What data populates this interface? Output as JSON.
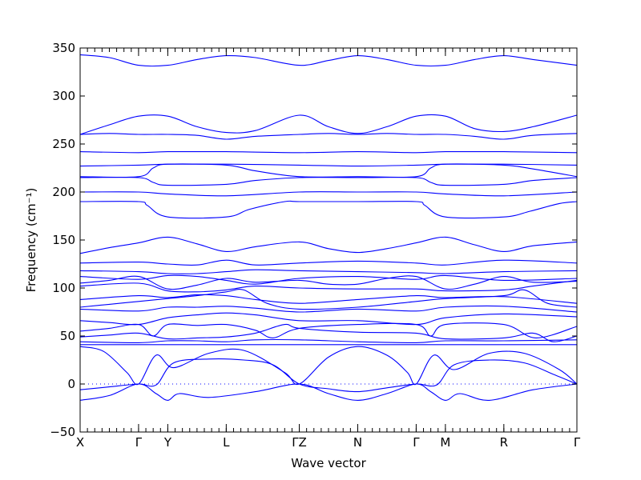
{
  "chart_data": {
    "type": "line",
    "title": "",
    "xlabel": "Wave vector",
    "ylabel": "Frequency (cm⁻¹)",
    "ylim": [
      -50,
      350
    ],
    "yticks": [
      -50,
      0,
      50,
      100,
      150,
      200,
      250,
      300,
      350
    ],
    "xlim": [
      0,
      8.5
    ],
    "xticks": [
      {
        "x": 0.0,
        "label": "X"
      },
      {
        "x": 1.0,
        "label": "Γ"
      },
      {
        "x": 1.5,
        "label": "Y"
      },
      {
        "x": 2.5,
        "label": "L"
      },
      {
        "x": 3.75,
        "label": "ΓZ"
      },
      {
        "x": 4.75,
        "label": "N"
      },
      {
        "x": 5.75,
        "label": "Γ"
      },
      {
        "x": 6.25,
        "label": "M"
      },
      {
        "x": 7.25,
        "label": "R"
      },
      {
        "x": 8.5,
        "label": "Γ"
      }
    ],
    "grid": false,
    "bands": [
      {
        "x": [
          0,
          0.5,
          1,
          1.5,
          2,
          2.5,
          3,
          3.75,
          4.25,
          4.75,
          5.25,
          5.75,
          6.25,
          6.75,
          7.25,
          7.75,
          8.5
        ],
        "y": [
          343,
          340,
          332,
          332,
          338,
          342,
          340,
          332,
          337,
          342,
          338,
          332,
          332,
          338,
          342,
          338,
          332
        ]
      },
      {
        "x": [
          0,
          0.5,
          1,
          1.5,
          2,
          2.5,
          3,
          3.75,
          4.25,
          4.75,
          5.25,
          5.75,
          6.25,
          6.75,
          7.25,
          7.75,
          8.5
        ],
        "y": [
          260,
          270,
          279,
          279,
          268,
          262,
          264,
          280,
          268,
          261,
          268,
          279,
          279,
          266,
          263,
          268,
          280
        ]
      },
      {
        "x": [
          0,
          0.5,
          1,
          1.5,
          2,
          2.5,
          3,
          3.75,
          4.25,
          4.75,
          5.25,
          5.75,
          6.25,
          6.75,
          7.25,
          7.75,
          8.5
        ],
        "y": [
          260,
          261,
          260,
          260,
          259,
          255,
          258,
          260,
          261,
          260,
          261,
          260,
          260,
          258,
          255,
          259,
          261
        ]
      },
      {
        "x": [
          0,
          1,
          1.5,
          2.5,
          3.75,
          4.75,
          5.75,
          6.25,
          7.25,
          8.5
        ],
        "y": [
          242,
          241,
          242,
          242,
          241,
          242,
          241,
          242,
          242,
          241
        ]
      },
      {
        "x": [
          0,
          1,
          1.5,
          2.5,
          3.75,
          4.75,
          5.75,
          6.25,
          7.25,
          8.5
        ],
        "y": [
          227,
          228,
          229,
          229,
          228,
          227,
          228,
          229,
          229,
          228
        ]
      },
      {
        "x": [
          0,
          1,
          1.25,
          1.5,
          2.5,
          3,
          3.75,
          4.75,
          5.75,
          6,
          6.25,
          7.25,
          7.75,
          8.5
        ],
        "y": [
          216,
          216,
          225,
          229,
          228,
          222,
          216,
          216,
          216,
          225,
          229,
          228,
          224,
          216
        ]
      },
      {
        "x": [
          0,
          1,
          1.25,
          1.5,
          2.5,
          3,
          3.75,
          4.75,
          5.75,
          6,
          6.25,
          7.25,
          7.75,
          8.5
        ],
        "y": [
          215,
          215,
          210,
          207,
          208,
          212,
          215,
          215,
          215,
          210,
          207,
          208,
          212,
          215
        ]
      },
      {
        "x": [
          0,
          1,
          1.5,
          2.5,
          3.75,
          4.75,
          5.75,
          6.25,
          7.25,
          8.5
        ],
        "y": [
          200,
          200,
          198,
          196,
          200,
          200,
          200,
          198,
          196,
          200
        ]
      },
      {
        "x": [
          0,
          1,
          1.15,
          1.5,
          2.5,
          2.9,
          3.5,
          3.75,
          4.75,
          5.75,
          5.9,
          6.25,
          7.25,
          7.7,
          8.2,
          8.5
        ],
        "y": [
          190,
          190,
          186,
          174,
          174,
          182,
          190,
          190,
          190,
          190,
          186,
          174,
          174,
          180,
          188,
          190
        ]
      },
      {
        "x": [
          0,
          0.5,
          1,
          1.5,
          2,
          2.5,
          3,
          3.75,
          4.25,
          4.75,
          5.25,
          5.75,
          6.25,
          6.75,
          7.25,
          7.75,
          8.5
        ],
        "y": [
          136,
          142,
          147,
          153,
          146,
          138,
          143,
          148,
          141,
          137,
          141,
          147,
          153,
          145,
          138,
          144,
          148
        ]
      },
      {
        "x": [
          0,
          1,
          1.5,
          2,
          2.5,
          3,
          3.75,
          4.75,
          5.75,
          6.25,
          7.25,
          8.5
        ],
        "y": [
          126,
          127,
          125,
          124,
          129,
          124,
          126,
          128,
          126,
          124,
          129,
          126
        ]
      },
      {
        "x": [
          0,
          1,
          1.5,
          2,
          2.5,
          3,
          3.75,
          4.75,
          5.75,
          6.25,
          7.25,
          8.5
        ],
        "y": [
          118,
          117,
          115,
          115,
          117,
          119,
          118,
          117,
          116,
          115,
          117,
          118
        ]
      },
      {
        "x": [
          0,
          1,
          1.5,
          2,
          2.5,
          3,
          3.75,
          4.75,
          5.75,
          6.25,
          7.25,
          8.5
        ],
        "y": [
          112,
          109,
          113,
          112,
          108,
          104,
          110,
          112,
          109,
          113,
          108,
          110
        ]
      },
      {
        "x": [
          0,
          0.5,
          1,
          1.5,
          2,
          2.5,
          3,
          3.75,
          4.25,
          4.75,
          5.25,
          5.75,
          6.25,
          6.75,
          7.25,
          7.75,
          8.5
        ],
        "y": [
          105,
          108,
          112,
          99,
          103,
          110,
          106,
          108,
          104,
          104,
          110,
          112,
          99,
          104,
          112,
          106,
          107
        ]
      },
      {
        "x": [
          0,
          1,
          1.5,
          2,
          2.5,
          3,
          3.75,
          4.75,
          5.75,
          6.25,
          7.25,
          7.75,
          8.5
        ],
        "y": [
          102,
          105,
          97,
          96,
          98,
          102,
          100,
          99,
          99,
          97,
          98,
          102,
          108
        ]
      },
      {
        "x": [
          0,
          1,
          1.5,
          2,
          2.5,
          3,
          3.75,
          4.75,
          5.75,
          6.25,
          7.25,
          8.5
        ],
        "y": [
          88,
          92,
          90,
          93,
          92,
          88,
          84,
          88,
          92,
          90,
          91,
          84
        ]
      },
      {
        "x": [
          0,
          0.5,
          1,
          1.5,
          2,
          2.5,
          2.8,
          3.2,
          3.75,
          4.75,
          5.75,
          6.25,
          7.25,
          7.6,
          8.0,
          8.5
        ],
        "y": [
          80,
          83,
          86,
          89,
          92,
          96,
          98,
          84,
          78,
          80,
          86,
          89,
          92,
          98,
          84,
          80
        ]
      },
      {
        "x": [
          0,
          1,
          1.5,
          2,
          2.5,
          3,
          3.75,
          4.75,
          5.75,
          6.25,
          7.25,
          8.5
        ],
        "y": [
          78,
          76,
          80,
          80,
          81,
          79,
          75,
          78,
          76,
          80,
          81,
          75
        ]
      },
      {
        "x": [
          0,
          0.5,
          1,
          1.5,
          2,
          2.5,
          3,
          3.75,
          4.75,
          5.75,
          6.25,
          7.25,
          8.5
        ],
        "y": [
          66,
          64,
          62,
          69,
          72,
          74,
          72,
          66,
          66,
          62,
          69,
          73,
          70
        ]
      },
      {
        "x": [
          0,
          0.5,
          1,
          1.25,
          1.5,
          2,
          2.5,
          3,
          3.3,
          3.75,
          4.75,
          5.75,
          6,
          6.25,
          7.25,
          7.8,
          8.5
        ],
        "y": [
          55,
          58,
          62,
          50,
          62,
          61,
          62,
          56,
          48,
          58,
          62,
          62,
          50,
          62,
          62,
          48,
          60
        ]
      },
      {
        "x": [
          0,
          0.5,
          1,
          1.5,
          2,
          2.5,
          3,
          3.5,
          3.75,
          4.75,
          5.75,
          6.25,
          7.25,
          7.75,
          8.1,
          8.5
        ],
        "y": [
          49,
          51,
          53,
          47,
          48,
          49,
          53,
          62,
          58,
          54,
          53,
          47,
          48,
          53,
          44,
          50
        ]
      },
      {
        "x": [
          0,
          1,
          1.5,
          2,
          2.5,
          3,
          3.75,
          4.75,
          5.75,
          6.25,
          7.25,
          8.5
        ],
        "y": [
          44,
          43,
          45,
          45,
          44,
          46,
          46,
          44,
          43,
          45,
          45,
          46
        ]
      },
      {
        "x": [
          0,
          1,
          1.5,
          2.5,
          3.75,
          4.75,
          5.75,
          6.25,
          7.25,
          8.5
        ],
        "y": [
          41,
          41,
          41,
          41,
          41,
          41,
          41,
          41,
          41,
          41
        ]
      },
      {
        "x": [
          0,
          0.4,
          0.8,
          1,
          1.3,
          1.6,
          2.2,
          2.8,
          3.5,
          3.75,
          4.25,
          4.75,
          5.25,
          5.6,
          5.75,
          6.05,
          6.4,
          7.0,
          7.6,
          8.2,
          8.5
        ],
        "y": [
          39,
          34,
          12,
          0,
          30,
          17,
          32,
          35,
          12,
          0,
          28,
          39,
          30,
          12,
          0,
          30,
          15,
          32,
          32,
          15,
          0
        ]
      },
      {
        "x": [
          0,
          0.5,
          1,
          1.3,
          1.6,
          2.2,
          2.8,
          3.3,
          3.75,
          4.25,
          4.75,
          5.25,
          5.75,
          6.1,
          6.4,
          7.0,
          7.6,
          8.1,
          8.5
        ],
        "y": [
          -6,
          -3,
          0,
          -1,
          22,
          26,
          25,
          20,
          0,
          -5,
          -8,
          -4,
          0,
          -1,
          20,
          25,
          22,
          10,
          0
        ]
      },
      {
        "x": [
          0,
          0.5,
          1,
          1.3,
          1.5,
          1.7,
          2.2,
          3.0,
          3.75,
          4.25,
          4.75,
          5.25,
          5.75,
          6.0,
          6.25,
          6.5,
          7.0,
          7.75,
          8.5
        ],
        "y": [
          -17,
          -12,
          0,
          -10,
          -17,
          -10,
          -14,
          -8,
          0,
          -10,
          -17,
          -10,
          0,
          -8,
          -17,
          -10,
          -17,
          -6,
          0
        ]
      }
    ]
  }
}
